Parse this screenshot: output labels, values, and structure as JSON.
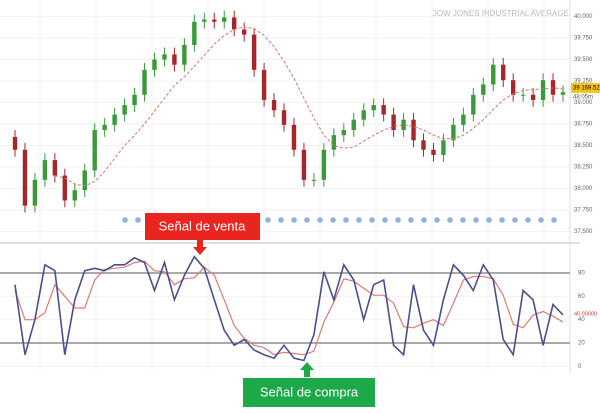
{
  "chart_data": [
    {
      "type": "candlestick",
      "title": "DOW JONES INDUSTRIAL AVERAGE",
      "categories": [
        null,
        null,
        null,
        null,
        null,
        null,
        null,
        null,
        null,
        null,
        null,
        null,
        null,
        null,
        null,
        null,
        null,
        null,
        null,
        null,
        null,
        null,
        null,
        null,
        null,
        null,
        null,
        null,
        null,
        null,
        null,
        null,
        null,
        null,
        null,
        null,
        null,
        null,
        null,
        null,
        null,
        null,
        null,
        null,
        null,
        null,
        null,
        null,
        null,
        null,
        null,
        null,
        null,
        null,
        null,
        null
      ],
      "open": [
        38600,
        38450,
        37800,
        38100,
        38330,
        38150,
        37860,
        37980,
        38210,
        38680,
        38740,
        38860,
        38970,
        39090,
        39380,
        39500,
        39560,
        39440,
        39670,
        39940,
        39965,
        39940,
        39990,
        39850,
        39790,
        39380,
        39030,
        38910,
        38740,
        38450,
        38100,
        38100,
        38450,
        38620,
        38680,
        38800,
        38910,
        38970,
        38860,
        38680,
        38800,
        38560,
        38450,
        38390,
        38560,
        38740,
        38860,
        39090,
        39210,
        39440,
        39260,
        39090,
        39090,
        39030,
        39260,
        39090
      ],
      "high": [
        38680,
        38530,
        38180,
        38410,
        38410,
        38230,
        38060,
        38290,
        38760,
        38820,
        38940,
        39050,
        39170,
        39460,
        39580,
        39640,
        39640,
        39750,
        40020,
        40045,
        40045,
        40070,
        40070,
        39930,
        39870,
        39460,
        39110,
        38990,
        38820,
        38530,
        38180,
        38530,
        38700,
        38760,
        38880,
        38990,
        39050,
        39050,
        38940,
        38880,
        38880,
        38640,
        38530,
        38640,
        38820,
        38940,
        39170,
        39290,
        39520,
        39520,
        39340,
        39170,
        39170,
        39340,
        39340,
        39200
      ],
      "low": [
        38370,
        37720,
        37720,
        38020,
        38070,
        37780,
        37780,
        37900,
        38130,
        38600,
        38660,
        38780,
        38890,
        39010,
        39300,
        39420,
        39360,
        39360,
        39590,
        39860,
        39860,
        39860,
        39770,
        39710,
        39300,
        38950,
        38830,
        38660,
        38370,
        38020,
        38020,
        38020,
        38370,
        38540,
        38600,
        38720,
        38830,
        38780,
        38600,
        38600,
        38480,
        38370,
        38310,
        38310,
        38480,
        38660,
        38780,
        39010,
        39130,
        39180,
        39010,
        39010,
        38950,
        38950,
        39010,
        39010
      ],
      "close": [
        38450,
        37800,
        38100,
        38330,
        38150,
        37860,
        37980,
        38210,
        38680,
        38740,
        38860,
        38970,
        39090,
        39380,
        39500,
        39560,
        39440,
        39670,
        39940,
        39965,
        39940,
        39990,
        39850,
        39790,
        39380,
        39030,
        38910,
        38740,
        38450,
        38100,
        38100,
        38450,
        38620,
        38680,
        38800,
        38910,
        38970,
        38860,
        38680,
        38800,
        38560,
        38450,
        38390,
        38560,
        38740,
        38860,
        39090,
        39210,
        39440,
        39260,
        39090,
        39090,
        39030,
        39260,
        39090,
        39120
      ],
      "up_color": "#3a9a3a",
      "down_color": "#a8262b",
      "series": [
        {
          "color": "#e07070",
          "values": [
            null,
            null,
            null,
            null,
            38150,
            38120,
            38050,
            38030,
            38080,
            38200,
            38350,
            38500,
            38620,
            38750,
            38900,
            39050,
            39200,
            39300,
            39420,
            39550,
            39680,
            39780,
            39850,
            39880,
            39860,
            39780,
            39650,
            39480,
            39280,
            39050,
            38820,
            38620,
            38500,
            38470,
            38480,
            38550,
            38620,
            38680,
            38720,
            38740,
            38720,
            38680,
            38620,
            38580,
            38580,
            38620,
            38700,
            38800,
            38920,
            39030,
            39100,
            39140,
            39150,
            39160,
            39170,
            39160
          ]
        }
      ],
      "ylim": [
        37400,
        40100
      ],
      "yticks": [
        {
          "value": 40000,
          "label": "40.000"
        },
        {
          "value": 39750,
          "label": "39.750"
        },
        {
          "value": 39500,
          "label": "39.500"
        },
        {
          "value": 39250,
          "label": "39.250"
        },
        {
          "value": 39000,
          "label": "39.000"
        },
        {
          "value": 38750,
          "label": "38.750"
        },
        {
          "value": 38500,
          "label": "38.500"
        },
        {
          "value": 38250,
          "label": "38.250"
        },
        {
          "value": 38000,
          "label": "38.000"
        },
        {
          "value": 37750,
          "label": "37.750"
        },
        {
          "value": 37500,
          "label": "37.500"
        }
      ],
      "last_price": {
        "value": 39169.52,
        "label": "39 169.52"
      },
      "timer": "48:05m",
      "grid": true
    },
    {
      "type": "line",
      "series": [
        {
          "color": "#4a4f8f",
          "values": [
            70,
            10,
            40,
            87,
            82,
            10,
            57,
            82,
            84,
            82,
            87,
            87,
            93,
            89,
            65,
            89,
            57,
            78,
            94,
            84,
            57,
            31,
            18,
            23,
            14,
            10,
            7,
            18,
            7,
            5,
            27,
            81,
            57,
            87,
            74,
            40,
            70,
            74,
            18,
            10,
            70,
            31,
            18,
            57,
            87,
            78,
            65,
            87,
            74,
            23,
            10,
            65,
            57,
            18,
            53,
            44
          ]
        },
        {
          "color": "#e07a72",
          "values": [
            65,
            40,
            40,
            46,
            70,
            60,
            50,
            50,
            74,
            83,
            84,
            85,
            89,
            90,
            82,
            81,
            70,
            75,
            76,
            85,
            78,
            57,
            35,
            24,
            18,
            16,
            10,
            12,
            11,
            10,
            13,
            38,
            55,
            75,
            73,
            67,
            61,
            61,
            54,
            34,
            33,
            37,
            40,
            35,
            54,
            74,
            77,
            77,
            75,
            61,
            36,
            33,
            44,
            47,
            43,
            38
          ]
        }
      ],
      "ylim": [
        -4,
        104
      ],
      "yticks": [
        0,
        20,
        40,
        60,
        80
      ],
      "levels": [
        20,
        80
      ],
      "last_value": {
        "value": 45,
        "label": "45.00000"
      },
      "grid": true
    }
  ],
  "annotations": {
    "sell": "Señal de venta",
    "buy": "Señal de compra"
  }
}
